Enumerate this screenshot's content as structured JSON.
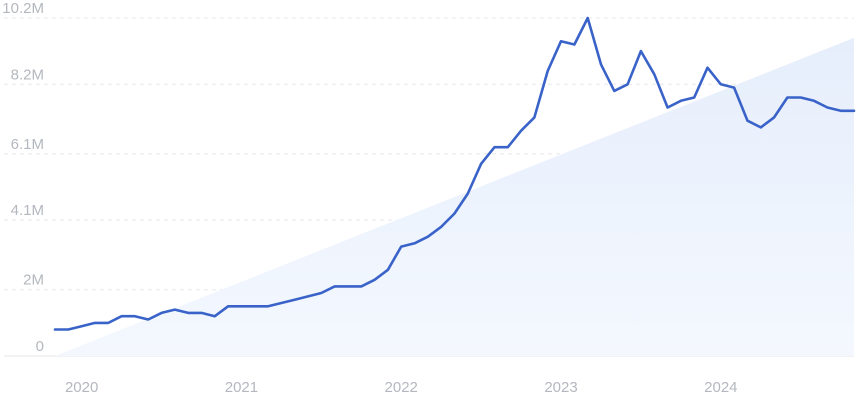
{
  "chart_data": {
    "type": "line",
    "title": "",
    "xlabel": "",
    "ylabel": "",
    "grid": true,
    "legend": "none",
    "y_ticks": [
      {
        "value": 0,
        "label": "0"
      },
      {
        "value": 2000000,
        "label": "2M"
      },
      {
        "value": 4100000,
        "label": "4.1M"
      },
      {
        "value": 6100000,
        "label": "6.1M"
      },
      {
        "value": 8200000,
        "label": "8.2M"
      },
      {
        "value": 10200000,
        "label": "10.2M"
      }
    ],
    "x_ticks": [
      {
        "value": "2020-01",
        "label": "2020"
      },
      {
        "value": "2021-01",
        "label": "2021"
      },
      {
        "value": "2022-01",
        "label": "2022"
      },
      {
        "value": "2023-01",
        "label": "2023"
      },
      {
        "value": "2024-01",
        "label": "2024"
      }
    ],
    "ylim": [
      0,
      10200000
    ],
    "xlim": [
      "2019-11",
      "2024-11"
    ],
    "trend": {
      "start": {
        "x": "2019-11",
        "y": 0
      },
      "end": {
        "x": "2024-11",
        "y": 9600000
      }
    },
    "colors": {
      "line": "#3a63c9",
      "trend_fill_top": "#e6eefc",
      "trend_fill_bottom": "#f4f8fe"
    },
    "series": [
      {
        "x": [
          "2019-11",
          "2019-12",
          "2020-01",
          "2020-02",
          "2020-03",
          "2020-04",
          "2020-05",
          "2020-06",
          "2020-07",
          "2020-08",
          "2020-09",
          "2020-10",
          "2020-11",
          "2020-12",
          "2021-01",
          "2021-02",
          "2021-03",
          "2021-04",
          "2021-05",
          "2021-06",
          "2021-07",
          "2021-08",
          "2021-09",
          "2021-10",
          "2021-11",
          "2021-12",
          "2022-01",
          "2022-02",
          "2022-03",
          "2022-04",
          "2022-05",
          "2022-06",
          "2022-07",
          "2022-08",
          "2022-09",
          "2022-10",
          "2022-11",
          "2022-12",
          "2023-01",
          "2023-02",
          "2023-03",
          "2023-04",
          "2023-05",
          "2023-06",
          "2023-07",
          "2023-08",
          "2023-09",
          "2023-10",
          "2023-11",
          "2023-12",
          "2024-01",
          "2024-02",
          "2024-03",
          "2024-04",
          "2024-05",
          "2024-06",
          "2024-07",
          "2024-08",
          "2024-09",
          "2024-10",
          "2024-11"
        ],
        "values": [
          800000,
          800000,
          900000,
          1000000,
          1000000,
          1200000,
          1200000,
          1100000,
          1300000,
          1400000,
          1300000,
          1300000,
          1200000,
          1500000,
          1500000,
          1500000,
          1500000,
          1600000,
          1700000,
          1800000,
          1900000,
          2100000,
          2100000,
          2100000,
          2300000,
          2600000,
          3300000,
          3400000,
          3600000,
          3900000,
          4300000,
          4900000,
          5800000,
          6300000,
          6300000,
          6800000,
          7200000,
          8600000,
          9500000,
          9400000,
          10200000,
          8800000,
          8000000,
          8200000,
          9200000,
          8500000,
          7500000,
          7700000,
          7800000,
          8700000,
          8200000,
          8100000,
          7100000,
          6900000,
          7200000,
          7800000,
          7800000,
          7700000,
          7500000,
          7400000,
          7400000
        ]
      }
    ]
  }
}
